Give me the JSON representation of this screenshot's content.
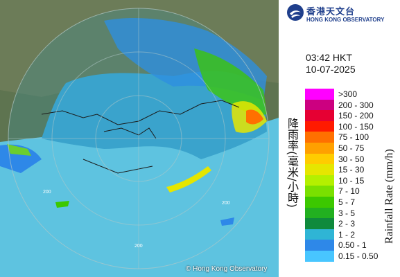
{
  "time": "03:42 HKT",
  "date": "10-07-2025",
  "copyright": "© Hong Kong Observatory",
  "logo": {
    "chinese": "香港天文台",
    "english": "HONG KONG OBSERVATORY"
  },
  "legend_title_cn": "降雨率(毫米/小時)",
  "legend_title_en": "Rainfall Rate (mm/h)",
  "range_ring_label": "200",
  "legend": [
    {
      "range": ">300",
      "color": "#ff00ff"
    },
    {
      "range": "200 - 300",
      "color": "#cc0080"
    },
    {
      "range": "150 - 200",
      "color": "#e60033"
    },
    {
      "range": "100 - 150",
      "color": "#ff1a00"
    },
    {
      "range": "75 - 100",
      "color": "#ff7000"
    },
    {
      "range": "50 - 75",
      "color": "#ffa000"
    },
    {
      "range": "30 - 50",
      "color": "#ffcc00"
    },
    {
      "range": "15 - 30",
      "color": "#e6e600"
    },
    {
      "range": "10 - 15",
      "color": "#b4f000"
    },
    {
      "range": "7 - 10",
      "color": "#7ae000"
    },
    {
      "range": "5 - 7",
      "color": "#3cc800"
    },
    {
      "range": "3 - 5",
      "color": "#22b020"
    },
    {
      "range": "2 - 3",
      "color": "#0f8a3c"
    },
    {
      "range": "1 - 2",
      "color": "#2fb5d5"
    },
    {
      "range": "0.50 - 1",
      "color": "#2e88e8"
    },
    {
      "range": "0.15 - 0.50",
      "color": "#48c6ff"
    }
  ]
}
